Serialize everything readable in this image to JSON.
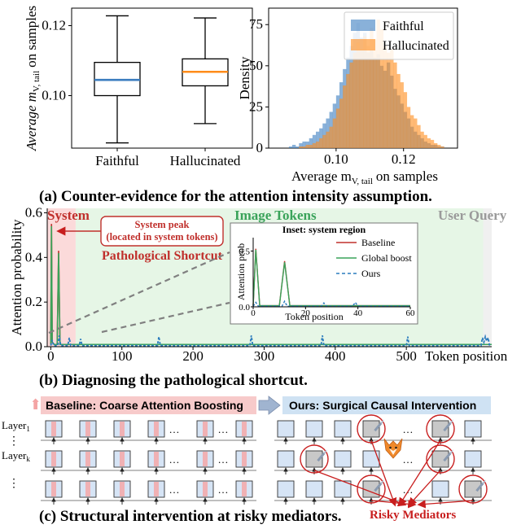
{
  "colors": {
    "faithful": "#3b7dbf",
    "hallucinated": "#ff8c1a",
    "baseline": "#c0302c",
    "global_boost": "#3aa35a",
    "ours": "#2a7bbd",
    "system_region": "#fbdada",
    "image_region": "#e6f6e6",
    "user_region": "#f0f0f0",
    "system_text": "#c0302c",
    "image_text": "#3aa35a",
    "user_text": "#9a9a9a",
    "risky_red": "#c81e1e",
    "baseline_banner": "#f7caca",
    "ours_banner": "#cfe2f3",
    "block_fill": "#d6e4f5",
    "block_gray": "#c8c8c8"
  },
  "chart_data": [
    {
      "type": "box",
      "ylabel": "Average m_{V, tail} on samples",
      "categories": [
        "Faithful",
        "Hallucinated"
      ],
      "ylim": [
        0.085,
        0.125
      ],
      "yticks": [
        0.1,
        0.12
      ],
      "ytick_labels": [
        "0.10",
        "0.12"
      ],
      "boxes": [
        {
          "name": "Faithful",
          "whisker_low": 0.0865,
          "q1": 0.1,
          "median": 0.1045,
          "q3": 0.1095,
          "whisker_high": 0.1228
        },
        {
          "name": "Hallucinated",
          "whisker_low": 0.092,
          "q1": 0.1028,
          "median": 0.1068,
          "q3": 0.1105,
          "whisker_high": 0.1222
        }
      ]
    },
    {
      "type": "histogram",
      "ylabel": "Density",
      "xlabel": "Average m_{V, tail} on samples",
      "xlim": [
        0.08,
        0.136
      ],
      "ylim": [
        0,
        85
      ],
      "xticks": [
        0.1,
        0.12
      ],
      "xtick_labels": [
        "0.10",
        "0.12"
      ],
      "yticks": [
        0,
        25,
        50,
        75
      ],
      "ytick_labels": [
        "0",
        "25",
        "50",
        "75"
      ],
      "legend": [
        "Faithful",
        "Hallucinated"
      ],
      "bin_start": 0.086,
      "bin_width": 0.001,
      "series": [
        {
          "name": "Faithful",
          "values": [
            1,
            2,
            1,
            3,
            4,
            4,
            6,
            8,
            10,
            12,
            15,
            18,
            22,
            27,
            32,
            40,
            48,
            55,
            62,
            70,
            76,
            67,
            70,
            58,
            60,
            55,
            57,
            50,
            47,
            52,
            44,
            36,
            32,
            27,
            22,
            18,
            13,
            10,
            8,
            6,
            4,
            3,
            2,
            2,
            1,
            1
          ]
        },
        {
          "name": "Hallucinated",
          "values": [
            0,
            0,
            0,
            1,
            1,
            2,
            2,
            3,
            4,
            6,
            8,
            10,
            13,
            18,
            24,
            30,
            38,
            45,
            52,
            58,
            64,
            60,
            68,
            62,
            73,
            66,
            78,
            72,
            62,
            58,
            60,
            52,
            45,
            40,
            34,
            25,
            20,
            18,
            14,
            10,
            8,
            6,
            5,
            3,
            2,
            1
          ]
        }
      ]
    },
    {
      "type": "line",
      "xlabel": "Token position",
      "ylabel": "Attention probability",
      "xlim": [
        -5,
        620
      ],
      "ylim": [
        0,
        0.62
      ],
      "xticks": [
        0,
        100,
        200,
        300,
        400,
        500
      ],
      "xtick_labels": [
        "0",
        "100",
        "200",
        "300",
        "400",
        "500"
      ],
      "yticks": [
        0.0,
        0.2,
        0.4,
        0.6
      ],
      "ytick_labels": [
        "0.0",
        "0.2",
        "0.4",
        "0.6"
      ],
      "regions": [
        {
          "label": "System",
          "start": -5,
          "end": 35
        },
        {
          "label": "Image Tokens",
          "start": 35,
          "end": 608
        },
        {
          "label": "User Query",
          "start": 608,
          "end": 620
        }
      ],
      "series": [
        {
          "name": "Baseline",
          "points": [
            [
              0,
              0.01
            ],
            [
              1,
              0.55
            ],
            [
              2,
              0.02
            ],
            [
              5,
              0.01
            ],
            [
              9,
              0.01
            ],
            [
              11,
              0.43
            ],
            [
              13,
              0.01
            ],
            [
              30,
              0.01
            ],
            [
              620,
              0.01
            ]
          ]
        },
        {
          "name": "Global boost",
          "points": [
            [
              0,
              0.01
            ],
            [
              1,
              0.54
            ],
            [
              2,
              0.02
            ],
            [
              5,
              0.01
            ],
            [
              9,
              0.01
            ],
            [
              11,
              0.42
            ],
            [
              13,
              0.01
            ],
            [
              30,
              0.01
            ],
            [
              620,
              0.01
            ]
          ]
        },
        {
          "name": "Ours",
          "points": [
            [
              0,
              0.005
            ],
            [
              2,
              0.03
            ],
            [
              4,
              0.005
            ],
            [
              10,
              0.005
            ],
            [
              12,
              0.05
            ],
            [
              14,
              0.005
            ],
            [
              24,
              0.005
            ],
            [
              26,
              0.04
            ],
            [
              28,
              0.005
            ],
            [
              40,
              0.005
            ],
            [
              42,
              0.035
            ],
            [
              44,
              0.005
            ],
            [
              150,
              0.005
            ],
            [
              152,
              0.045
            ],
            [
              154,
              0.005
            ],
            [
              280,
              0.005
            ],
            [
              282,
              0.05
            ],
            [
              284,
              0.005
            ],
            [
              380,
              0.005
            ],
            [
              382,
              0.05
            ],
            [
              384,
              0.005
            ],
            [
              500,
              0.005
            ],
            [
              502,
              0.045
            ],
            [
              504,
              0.005
            ],
            [
              605,
              0.005
            ],
            [
              607,
              0.04
            ],
            [
              609,
              0.02
            ],
            [
              611,
              0.045
            ],
            [
              613,
              0.025
            ],
            [
              615,
              0.04
            ],
            [
              617,
              0.005
            ]
          ]
        }
      ]
    },
    {
      "type": "line",
      "title": "Inset: system region",
      "xlabel": "Token position",
      "ylabel": "Attention prob",
      "xlim": [
        0,
        60
      ],
      "ylim": [
        0,
        0.62
      ],
      "xticks": [
        0,
        20,
        40,
        60
      ],
      "xtick_labels": [
        "0",
        "20",
        "40",
        "60"
      ],
      "yticks": [
        0.0,
        0.5
      ],
      "ytick_labels": [
        "0.0",
        "0.5"
      ],
      "legend": [
        "Baseline",
        "Global boost",
        "Ours"
      ],
      "series": [
        {
          "name": "Baseline",
          "points": [
            [
              0,
              0.01
            ],
            [
              1,
              0.52
            ],
            [
              2.5,
              0.01
            ],
            [
              10,
              0.01
            ],
            [
              12,
              0.41
            ],
            [
              14,
              0.01
            ],
            [
              60,
              0.01
            ]
          ]
        },
        {
          "name": "Global boost",
          "points": [
            [
              0,
              0.01
            ],
            [
              1,
              0.51
            ],
            [
              2.5,
              0.01
            ],
            [
              10,
              0.01
            ],
            [
              12,
              0.4
            ],
            [
              14,
              0.01
            ],
            [
              60,
              0.01
            ]
          ]
        },
        {
          "name": "Ours",
          "points": [
            [
              0,
              0.005
            ],
            [
              1,
              0.04
            ],
            [
              2,
              0.005
            ],
            [
              11,
              0.005
            ],
            [
              12,
              0.05
            ],
            [
              13,
              0.005
            ],
            [
              26,
              0.005
            ],
            [
              27,
              0.035
            ],
            [
              28,
              0.005
            ],
            [
              38,
              0.005
            ],
            [
              39,
              0.04
            ],
            [
              40,
              0.005
            ],
            [
              60,
              0.005
            ]
          ]
        }
      ]
    }
  ],
  "panel_a": {
    "caption": "(a) Counter-evidence for the attention intensity assumption.",
    "ylabel_main": "Average m",
    "ylabel_sub": "V, tail",
    "ylabel_tail": "on samples",
    "hist_ylabel": "Density",
    "hist_xlabel_main": "Average m",
    "hist_xlabel_sub": "V, tail",
    "hist_xlabel_tail": "on samples"
  },
  "panel_b": {
    "caption": "(b) Diagnosing the pathological shortcut.",
    "ylabel": "Attention probability",
    "xlabel": "Token position",
    "region_system": "System",
    "region_image": "Image Tokens",
    "region_user": "User Query",
    "callout_line1": "System peak",
    "callout_line2": "(located in system tokens)",
    "shortcut_label": "Pathological Shortcut"
  },
  "panel_c": {
    "caption": "(c) Structural intervention at risky mediators.",
    "baseline_banner": "Baseline: Coarse Attention Boosting",
    "ours_banner": "Ours: Surgical Causal Intervention",
    "layer_1_main": "Layer",
    "layer_1_sub": "1",
    "layer_k_main": "Layer",
    "layer_k_sub": "k",
    "vdots": "⋮",
    "hdots": "…",
    "risky_label": "Risky Mediators",
    "scalpel_icon": "scalpel-icon",
    "fox_icon": "fox-icon"
  }
}
